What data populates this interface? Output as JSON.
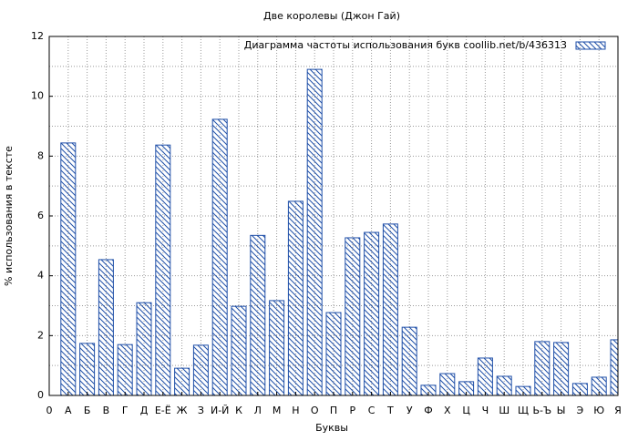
{
  "chart_data": {
    "type": "bar",
    "title": "Две королевы (Джон Гай)",
    "x_label": "Буквы",
    "y_label": "% использования в тексте",
    "categories": [
      "0",
      "А",
      "Б",
      "В",
      "Г",
      "Д",
      "Е-Ё",
      "Ж",
      "З",
      "И-Й",
      "К",
      "Л",
      "М",
      "Н",
      "О",
      "П",
      "Р",
      "С",
      "Т",
      "У",
      "Ф",
      "Х",
      "Ц",
      "Ч",
      "Ш",
      "Щ",
      "Ь-Ъ",
      "Ы",
      "Э",
      "Ю",
      "Я"
    ],
    "series": [
      {
        "name": "Диаграмма частоты использования букв  coollib.net/b/436313",
        "color": "#1f4fa8",
        "values": [
          null,
          8.44,
          1.74,
          4.54,
          1.7,
          3.1,
          8.37,
          0.91,
          1.68,
          9.23,
          2.98,
          5.35,
          3.17,
          6.49,
          10.9,
          2.77,
          5.27,
          5.45,
          5.73,
          2.28,
          0.34,
          0.73,
          0.46,
          1.25,
          0.64,
          0.3,
          1.8,
          1.77,
          0.4,
          0.61,
          1.86
        ]
      }
    ],
    "ylim": [
      0,
      12
    ],
    "yticks": [
      0,
      2,
      4,
      6,
      8,
      10,
      12
    ],
    "grid": true,
    "hatch": true,
    "legend": "top-right"
  }
}
